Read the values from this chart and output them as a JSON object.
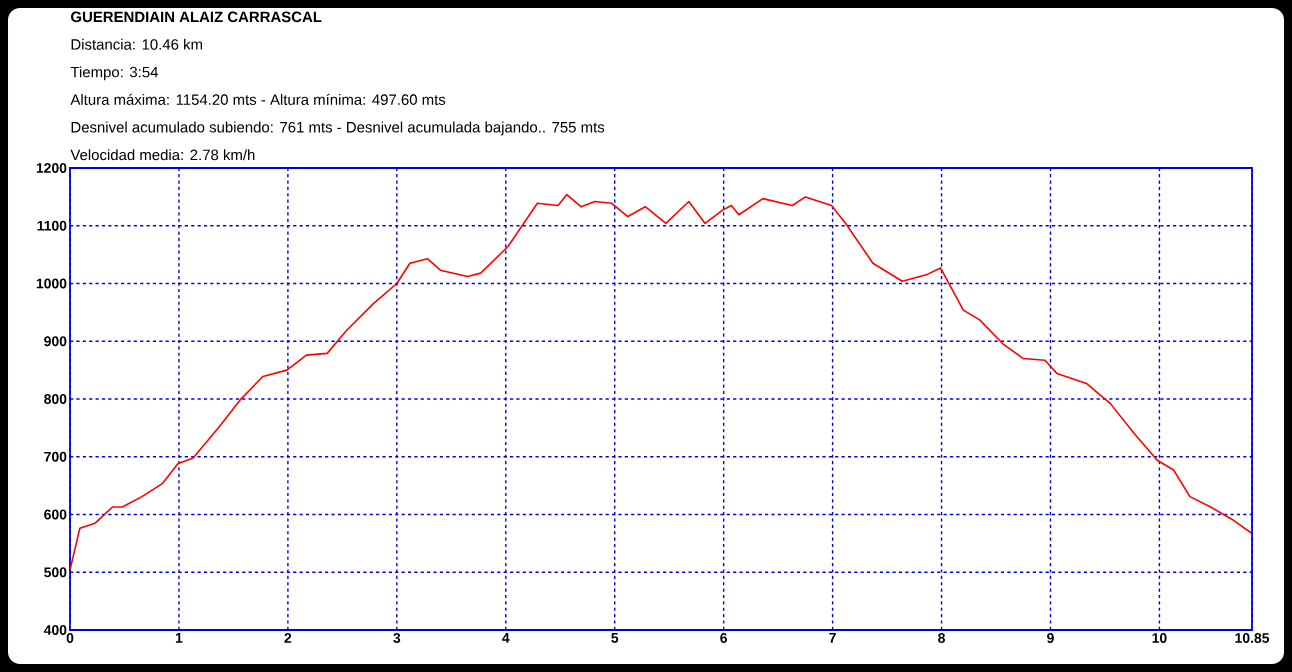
{
  "chart_data": {
    "type": "line",
    "title": "GUERENDIAIN ALAIZ CARRASCAL",
    "annotations": [
      "Distancia: 10.46 km",
      "Tiempo: 3:54",
      "Altura máxima: 1154.20 mts - Altura mínima: 497.60 mts",
      "Desnivel acumulado subiendo:   761   mts - Desnivel acumulada bajando..  755   mts",
      "Velocidad media: 2.78 km/h"
    ],
    "x": [
      0,
      0.09,
      0.23,
      0.39,
      0.48,
      0.66,
      0.85,
      0.99,
      1.13,
      1.37,
      1.56,
      1.77,
      1.99,
      2.17,
      2.36,
      2.54,
      2.79,
      3.0,
      3.12,
      3.28,
      3.4,
      3.65,
      3.77,
      4.02,
      4.29,
      4.48,
      4.56,
      4.69,
      4.82,
      4.97,
      5.12,
      5.28,
      5.47,
      5.68,
      5.83,
      5.99,
      6.07,
      6.14,
      6.36,
      6.63,
      6.75,
      6.99,
      7.12,
      7.37,
      7.64,
      7.86,
      7.99,
      8.2,
      8.35,
      8.56,
      8.75,
      8.95,
      9.06,
      9.33,
      9.55,
      9.77,
      9.98,
      10.13,
      10.28,
      10.47,
      10.68,
      10.85
    ],
    "values": [
      504,
      576,
      585,
      613,
      613,
      631,
      654,
      688,
      698,
      752,
      798,
      839,
      850,
      876,
      879,
      919,
      966,
      1000,
      1035,
      1043,
      1023,
      1012,
      1018,
      1064,
      1139,
      1135,
      1154,
      1133,
      1142,
      1139,
      1116,
      1133,
      1104,
      1142,
      1104,
      1127,
      1135,
      1119,
      1147,
      1135,
      1150,
      1135,
      1104,
      1035,
      1004,
      1015,
      1027,
      954,
      937,
      896,
      870,
      867,
      844,
      827,
      792,
      740,
      694,
      677,
      631,
      613,
      590,
      567
    ],
    "color": "#ff0000",
    "xlim": [
      0,
      10.85
    ],
    "ylim": [
      400,
      1200
    ],
    "xticks": [
      0,
      1,
      2,
      3,
      4,
      5,
      6,
      7,
      8,
      9,
      10,
      10.85
    ],
    "yticks": [
      400,
      500,
      600,
      700,
      800,
      900,
      1000,
      1100,
      1200
    ],
    "grid": true
  }
}
